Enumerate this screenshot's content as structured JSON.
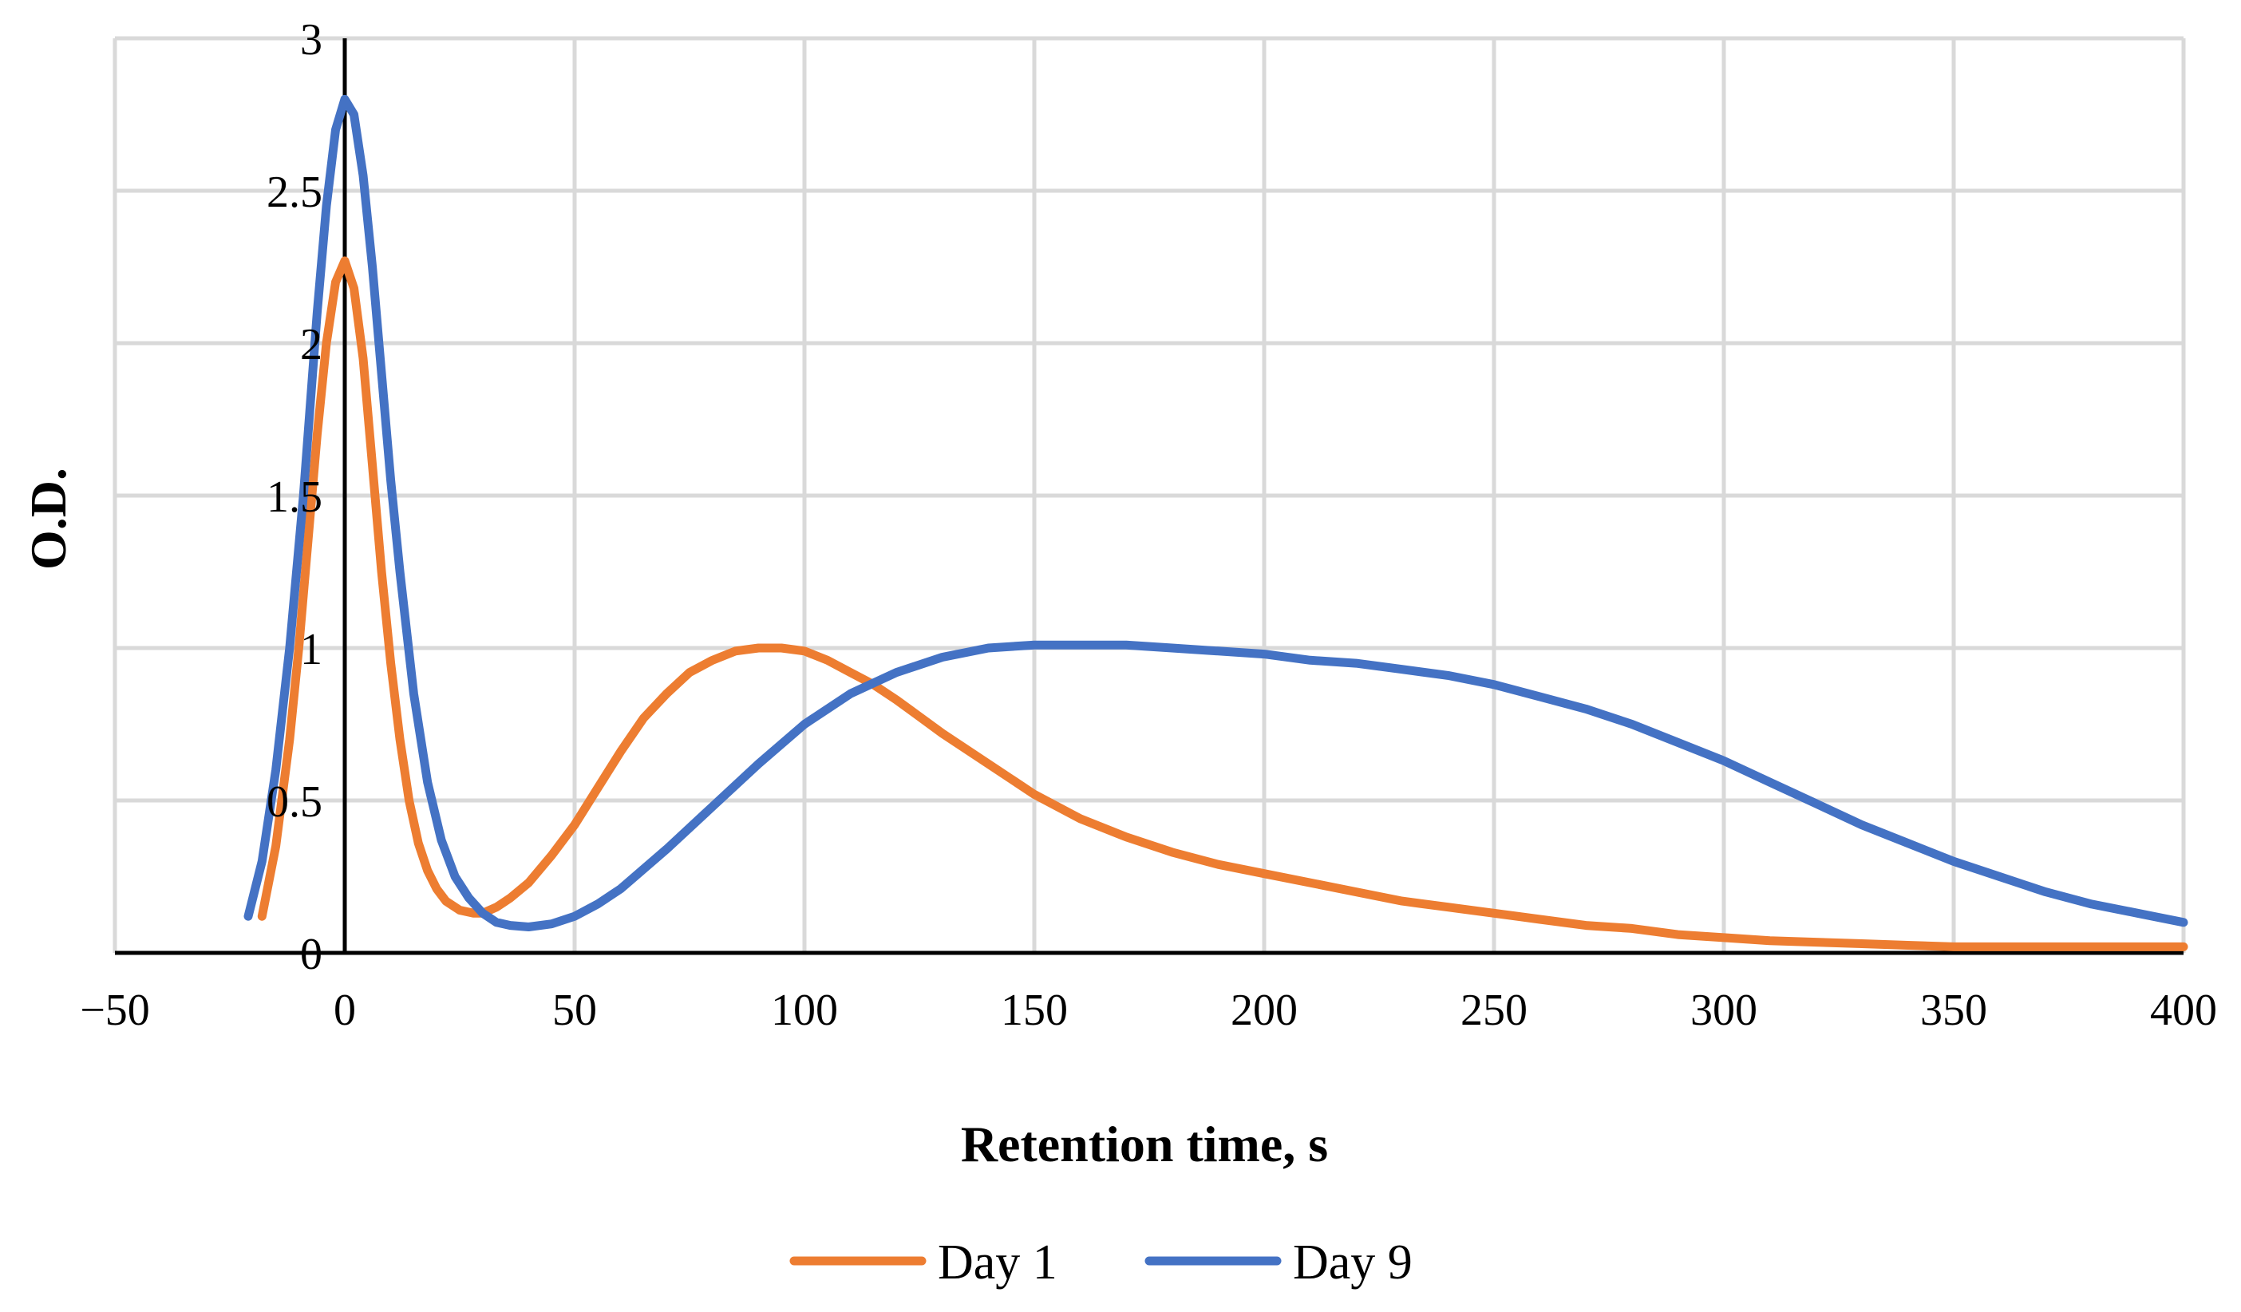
{
  "chart_data": {
    "type": "line",
    "title": "",
    "xlabel": "Retention time, s",
    "ylabel": "O.D.",
    "xlim": [
      -50,
      400
    ],
    "ylim": [
      0,
      3
    ],
    "xticks": [
      -50,
      0,
      50,
      100,
      150,
      200,
      250,
      300,
      350,
      400
    ],
    "yticks": [
      0,
      0.5,
      1,
      1.5,
      2,
      2.5,
      3
    ],
    "xtick_labels": [
      "−50",
      "0",
      "50",
      "100",
      "150",
      "200",
      "250",
      "300",
      "350",
      "400"
    ],
    "ytick_labels": [
      "0",
      "0.5",
      "1",
      "1.5",
      "2",
      "2.5",
      "3"
    ],
    "grid": true,
    "legend_position": "bottom-center",
    "series": [
      {
        "name": "Day 1",
        "color": "#ED7D31",
        "x": [
          -18,
          -15,
          -12,
          -10,
          -8,
          -6,
          -4,
          -2,
          0,
          2,
          4,
          6,
          8,
          10,
          12,
          14,
          16,
          18,
          20,
          22,
          25,
          28,
          30,
          33,
          36,
          40,
          45,
          50,
          55,
          60,
          65,
          70,
          75,
          80,
          85,
          90,
          95,
          100,
          105,
          110,
          115,
          120,
          130,
          140,
          150,
          160,
          170,
          180,
          190,
          200,
          210,
          220,
          230,
          240,
          250,
          260,
          270,
          280,
          290,
          300,
          310,
          320,
          330,
          340,
          350,
          360,
          370,
          380,
          390,
          400
        ],
        "y": [
          0.12,
          0.35,
          0.7,
          1.0,
          1.35,
          1.7,
          2.0,
          2.2,
          2.27,
          2.18,
          1.95,
          1.6,
          1.25,
          0.95,
          0.7,
          0.5,
          0.36,
          0.27,
          0.21,
          0.17,
          0.14,
          0.13,
          0.13,
          0.15,
          0.18,
          0.23,
          0.32,
          0.42,
          0.54,
          0.66,
          0.77,
          0.85,
          0.92,
          0.96,
          0.99,
          1.0,
          1.0,
          0.99,
          0.96,
          0.92,
          0.88,
          0.83,
          0.72,
          0.62,
          0.52,
          0.44,
          0.38,
          0.33,
          0.29,
          0.26,
          0.23,
          0.2,
          0.17,
          0.15,
          0.13,
          0.11,
          0.09,
          0.08,
          0.06,
          0.05,
          0.04,
          0.035,
          0.03,
          0.025,
          0.02,
          0.02,
          0.02,
          0.02,
          0.02,
          0.02
        ]
      },
      {
        "name": "Day 9",
        "color": "#4472C4",
        "x": [
          -21,
          -18,
          -15,
          -12,
          -9,
          -6,
          -4,
          -2,
          0,
          2,
          4,
          6,
          8,
          10,
          12,
          15,
          18,
          21,
          24,
          27,
          30,
          33,
          36,
          40,
          45,
          50,
          55,
          60,
          70,
          80,
          90,
          100,
          110,
          120,
          130,
          140,
          150,
          160,
          170,
          180,
          190,
          200,
          210,
          220,
          230,
          240,
          250,
          260,
          270,
          280,
          290,
          300,
          310,
          320,
          330,
          340,
          350,
          360,
          370,
          380,
          390,
          400
        ],
        "y": [
          0.12,
          0.3,
          0.6,
          1.0,
          1.5,
          2.1,
          2.45,
          2.7,
          2.8,
          2.75,
          2.55,
          2.25,
          1.9,
          1.55,
          1.25,
          0.85,
          0.56,
          0.37,
          0.25,
          0.18,
          0.13,
          0.1,
          0.09,
          0.085,
          0.095,
          0.12,
          0.16,
          0.21,
          0.34,
          0.48,
          0.62,
          0.75,
          0.85,
          0.92,
          0.97,
          1.0,
          1.01,
          1.01,
          1.01,
          1.0,
          0.99,
          0.98,
          0.96,
          0.95,
          0.93,
          0.91,
          0.88,
          0.84,
          0.8,
          0.75,
          0.69,
          0.63,
          0.56,
          0.49,
          0.42,
          0.36,
          0.3,
          0.25,
          0.2,
          0.16,
          0.13,
          0.1
        ]
      }
    ]
  }
}
